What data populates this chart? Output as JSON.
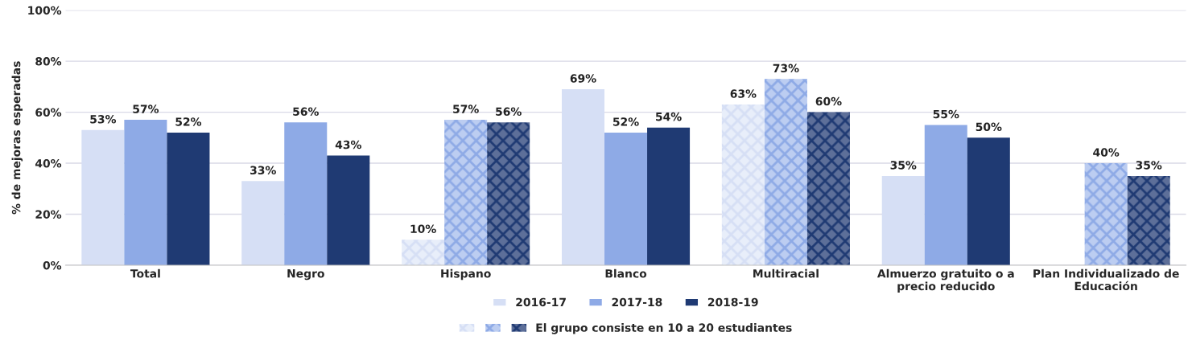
{
  "chart_data": {
    "type": "bar",
    "ylabel": "% de mejoras esperadas",
    "categories": [
      "Total",
      "Negro",
      "Hispano",
      "Blanco",
      "Multiracial",
      "Almuerzo gratuito o a\nprecio reducido",
      "Plan Individualizado de\nEducación"
    ],
    "series": [
      {
        "name": "2016-17",
        "color": "#d6dff5",
        "colors": [
          "#d6dff5",
          "#d6dff5",
          "#e8eefa",
          "#d6dff5",
          "#e8eefa",
          "#d6dff5",
          "#e8eefa"
        ],
        "values": [
          53,
          33,
          10,
          69,
          63,
          35,
          null
        ],
        "value_labels": [
          "53%",
          "33%",
          "10%",
          "69%",
          "63%",
          "35%",
          null
        ]
      },
      {
        "name": "2017-18",
        "color": "#8eaae6",
        "colors": [
          "#8eaae6",
          "#8eaae6",
          "#bccdf1",
          "#8eaae6",
          "#bccdf1",
          "#8eaae6",
          "#bccdf1"
        ],
        "values": [
          57,
          56,
          57,
          52,
          73,
          55,
          40
        ],
        "value_labels": [
          "57%",
          "56%",
          "57%",
          "52%",
          "73%",
          "55%",
          "40%"
        ]
      },
      {
        "name": "2018-19",
        "color": "#1f3a73",
        "colors": [
          "#1f3a73",
          "#1f3a73",
          "#5d6f99",
          "#1f3a73",
          "#5d6f99",
          "#1f3a73",
          "#5d6f99"
        ],
        "values": [
          52,
          43,
          56,
          54,
          60,
          50,
          35
        ],
        "value_labels": [
          "52%",
          "43%",
          "56%",
          "54%",
          "60%",
          "50%",
          "35%"
        ]
      }
    ],
    "ylim": [
      0,
      100
    ],
    "yticks": [
      {
        "value": 0,
        "label": "0%"
      },
      {
        "value": 20,
        "label": "20%"
      },
      {
        "value": 40,
        "label": "40%"
      },
      {
        "value": 60,
        "label": "60%"
      },
      {
        "value": 80,
        "label": "80%"
      },
      {
        "value": 100,
        "label": "100%"
      }
    ],
    "grid": "y",
    "legend": "bottom",
    "annotations": [
      "El grupo consiste en 10 a 20 estudiantes"
    ]
  }
}
